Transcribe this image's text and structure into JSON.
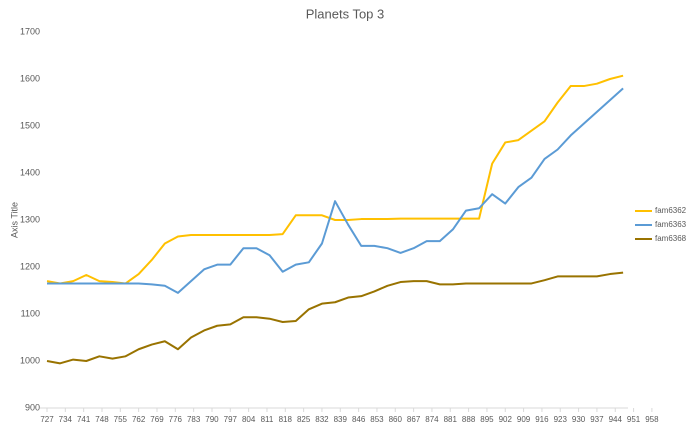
{
  "chart_data": {
    "type": "line",
    "title": "Planets Top 3",
    "y_label": "Axis Title",
    "x": [
      727,
      732,
      737,
      742,
      747,
      752,
      757,
      762,
      767,
      772,
      777,
      782,
      787,
      792,
      797,
      802,
      807,
      812,
      817,
      822,
      827,
      832,
      837,
      842,
      847,
      852,
      857,
      862,
      867,
      872,
      877,
      882,
      887,
      892,
      897,
      902,
      907,
      912,
      917,
      922,
      927,
      932,
      937,
      942,
      947
    ],
    "xlim": [
      727,
      963
    ],
    "xticks": [
      727,
      734,
      741,
      748,
      755,
      762,
      769,
      776,
      783,
      790,
      797,
      804,
      811,
      818,
      825,
      832,
      839,
      846,
      853,
      860,
      867,
      874,
      881,
      888,
      895,
      902,
      909,
      916,
      923,
      930,
      937,
      944,
      951,
      958
    ],
    "ylim": [
      900,
      1700
    ],
    "yticks": [
      900,
      1000,
      1100,
      1200,
      1300,
      1400,
      1500,
      1600,
      1700
    ],
    "grid": false,
    "legend": "right",
    "series": [
      {
        "name": "fam6362",
        "color": "#ffc000",
        "values": [
          1170,
          1165,
          1170,
          1183,
          1170,
          1168,
          1165,
          1185,
          1215,
          1250,
          1265,
          1268,
          1268,
          1268,
          1268,
          1268,
          1268,
          1268,
          1270,
          1310,
          1310,
          1310,
          1300,
          1300,
          1302,
          1302,
          1302,
          1303,
          1303,
          1303,
          1303,
          1303,
          1303,
          1303,
          1420,
          1465,
          1470,
          1490,
          1510,
          1550,
          1585,
          1585,
          1590,
          1600,
          1607
        ]
      },
      {
        "name": "fam6363",
        "color": "#5b9bd5",
        "values": [
          1165,
          1165,
          1165,
          1165,
          1165,
          1165,
          1165,
          1165,
          1163,
          1160,
          1145,
          1170,
          1195,
          1205,
          1205,
          1240,
          1240,
          1225,
          1190,
          1205,
          1210,
          1250,
          1340,
          1290,
          1245,
          1245,
          1240,
          1230,
          1240,
          1255,
          1255,
          1280,
          1320,
          1325,
          1355,
          1335,
          1370,
          1390,
          1430,
          1450,
          1480,
          1505,
          1530,
          1555,
          1580
        ]
      },
      {
        "name": "fam6368",
        "color": "#997300",
        "values": [
          1000,
          995,
          1003,
          1000,
          1010,
          1005,
          1010,
          1025,
          1035,
          1042,
          1025,
          1050,
          1065,
          1075,
          1078,
          1093,
          1093,
          1090,
          1083,
          1085,
          1110,
          1122,
          1125,
          1135,
          1138,
          1148,
          1160,
          1168,
          1170,
          1170,
          1163,
          1163,
          1165,
          1165,
          1165,
          1165,
          1165,
          1165,
          1172,
          1180,
          1180,
          1180,
          1180,
          1185,
          1188
        ]
      }
    ]
  }
}
